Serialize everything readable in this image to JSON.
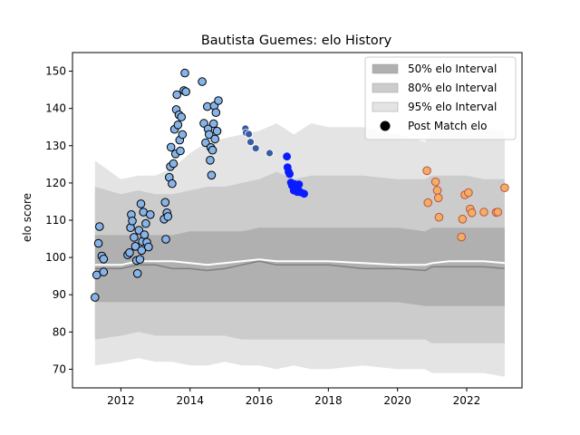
{
  "chart_data": {
    "type": "scatter",
    "title": "Bautista Guemes: elo History",
    "xlabel": "",
    "ylabel": "elo score",
    "xlim": [
      2010.6,
      2023.6
    ],
    "ylim": [
      65,
      155
    ],
    "xticks": [
      2012,
      2014,
      2016,
      2018,
      2020,
      2022
    ],
    "yticks": [
      70,
      80,
      90,
      100,
      110,
      120,
      130,
      140,
      150
    ],
    "grid": false,
    "legend_position": "top-right",
    "legend": [
      {
        "label": "50% elo Interval",
        "kind": "band",
        "color": "#b0b0b0"
      },
      {
        "label": "80% elo Interval",
        "kind": "band",
        "color": "#cccccc"
      },
      {
        "label": "95% elo Interval",
        "kind": "band",
        "color": "#e4e4e4"
      },
      {
        "label": "Post Match elo",
        "kind": "marker",
        "color": "#000000"
      }
    ],
    "colors": {
      "band95": "#e4e4e4",
      "band80": "#cccccc",
      "band50": "#b0b0b0",
      "median_line": "#808080",
      "mean_line": "#ffffff",
      "series1": "#87b4e8",
      "series2": "#3a5ba0",
      "series3": "#0a1cff",
      "series4": "#f0b060",
      "series4_edge": "#c0504d"
    },
    "intervals": {
      "x": [
        2011.25,
        2012.0,
        2012.5,
        2013.0,
        2013.5,
        2014.0,
        2014.5,
        2015.0,
        2015.5,
        2016.0,
        2016.5,
        2017.0,
        2017.5,
        2018.0,
        2019.0,
        2020.0,
        2020.8,
        2021.0,
        2021.5,
        2022.0,
        2022.5,
        2023.1
      ],
      "upper95": [
        126,
        121,
        122,
        122,
        124,
        128,
        131,
        132,
        133,
        134,
        136,
        133,
        136,
        135,
        135,
        133,
        131,
        134,
        136,
        135,
        135,
        134
      ],
      "lower95": [
        71,
        72,
        73,
        72,
        72,
        71,
        71,
        72,
        71,
        71,
        70,
        71,
        70,
        70,
        71,
        70,
        70,
        69,
        69,
        69,
        69,
        68
      ],
      "upper80": [
        119,
        117,
        118,
        117,
        117,
        118,
        119,
        119,
        120,
        121,
        123,
        121,
        122,
        122,
        122,
        121,
        121,
        122,
        122,
        122,
        121,
        121
      ],
      "lower80": [
        78,
        79,
        80,
        79,
        79,
        79,
        79,
        79,
        78,
        78,
        78,
        78,
        78,
        78,
        78,
        78,
        78,
        77,
        77,
        77,
        77,
        77
      ],
      "upper50": [
        106,
        106,
        106,
        106,
        106,
        107,
        107,
        107,
        107,
        108,
        108,
        108,
        108,
        108,
        108,
        108,
        107,
        108,
        108,
        108,
        108,
        108
      ],
      "lower50": [
        88,
        88,
        88,
        88,
        88,
        88,
        88,
        88,
        88,
        88,
        88,
        88,
        88,
        88,
        88,
        88,
        87,
        87,
        87,
        87,
        87,
        87
      ],
      "median": [
        97,
        97,
        98,
        98,
        97,
        97,
        96.5,
        97,
        98,
        99,
        98,
        98,
        98,
        98,
        97,
        97,
        96.5,
        97.5,
        97.5,
        97.5,
        97.5,
        97
      ],
      "mean": [
        98,
        98,
        99,
        99,
        99,
        98.5,
        98,
        98.5,
        99,
        99.5,
        99,
        99,
        99,
        99,
        98.5,
        98,
        98,
        98.5,
        99,
        99,
        99,
        98.5
      ]
    },
    "series": [
      {
        "marker": "circle-edged",
        "color": "#87b4e8",
        "edge": "#000000",
        "points": [
          [
            2011.25,
            89.3
          ],
          [
            2011.3,
            95.3
          ],
          [
            2011.35,
            103.8
          ],
          [
            2011.38,
            108.3
          ],
          [
            2011.45,
            100.4
          ],
          [
            2011.5,
            99.6
          ],
          [
            2011.5,
            96.1
          ],
          [
            2012.2,
            100.7
          ],
          [
            2012.25,
            101.3
          ],
          [
            2012.28,
            108.0
          ],
          [
            2012.3,
            111.5
          ],
          [
            2012.33,
            109.8
          ],
          [
            2012.38,
            105.4
          ],
          [
            2012.42,
            103.0
          ],
          [
            2012.45,
            99.2
          ],
          [
            2012.48,
            95.7
          ],
          [
            2012.52,
            107.3
          ],
          [
            2012.55,
            99.5
          ],
          [
            2012.58,
            114.4
          ],
          [
            2012.6,
            101.9
          ],
          [
            2012.62,
            104.3
          ],
          [
            2012.65,
            112.2
          ],
          [
            2012.68,
            106.1
          ],
          [
            2012.72,
            109.1
          ],
          [
            2012.75,
            104.1
          ],
          [
            2012.8,
            102.8
          ],
          [
            2012.85,
            111.5
          ],
          [
            2013.25,
            110.3
          ],
          [
            2013.28,
            114.8
          ],
          [
            2013.3,
            104.9
          ],
          [
            2013.33,
            112.0
          ],
          [
            2013.36,
            111.0
          ],
          [
            2013.4,
            121.5
          ],
          [
            2013.43,
            124.4
          ],
          [
            2013.45,
            129.6
          ],
          [
            2013.48,
            119.8
          ],
          [
            2013.52,
            125.2
          ],
          [
            2013.55,
            134.4
          ],
          [
            2013.58,
            127.8
          ],
          [
            2013.6,
            139.7
          ],
          [
            2013.62,
            143.7
          ],
          [
            2013.65,
            135.6
          ],
          [
            2013.68,
            138.3
          ],
          [
            2013.7,
            131.5
          ],
          [
            2013.72,
            128.6
          ],
          [
            2013.75,
            137.7
          ],
          [
            2013.78,
            133.0
          ],
          [
            2013.82,
            144.8
          ],
          [
            2013.85,
            149.5
          ],
          [
            2013.88,
            144.5
          ],
          [
            2014.35,
            147.2
          ],
          [
            2014.4,
            136.0
          ],
          [
            2014.45,
            130.8
          ],
          [
            2014.5,
            140.5
          ],
          [
            2014.52,
            134.5
          ],
          [
            2014.55,
            133.0
          ],
          [
            2014.58,
            126.1
          ],
          [
            2014.6,
            129.5
          ],
          [
            2014.62,
            122.1
          ],
          [
            2014.65,
            128.8
          ],
          [
            2014.68,
            135.9
          ],
          [
            2014.7,
            140.7
          ],
          [
            2014.72,
            131.8
          ],
          [
            2014.75,
            138.9
          ],
          [
            2014.78,
            133.9
          ],
          [
            2014.82,
            142.1
          ]
        ]
      },
      {
        "marker": "circle",
        "color": "#3a5ba0",
        "edge": "#ffffff",
        "points": [
          [
            2015.6,
            134.6
          ],
          [
            2015.62,
            133.5
          ],
          [
            2015.7,
            133.1
          ],
          [
            2015.75,
            131.0
          ],
          [
            2015.9,
            129.3
          ],
          [
            2016.3,
            128.0
          ]
        ]
      },
      {
        "marker": "circle",
        "color": "#0a1cff",
        "edge": "#0a1cff",
        "points": [
          [
            2016.8,
            127.1
          ],
          [
            2016.82,
            124.2
          ],
          [
            2016.85,
            123.0
          ],
          [
            2016.88,
            122.4
          ],
          [
            2016.92,
            120.1
          ],
          [
            2016.95,
            119.3
          ],
          [
            2017.0,
            118.0
          ],
          [
            2017.02,
            119.7
          ],
          [
            2017.05,
            118.6
          ],
          [
            2017.08,
            119.4
          ],
          [
            2017.1,
            117.6
          ],
          [
            2017.12,
            118.2
          ],
          [
            2017.15,
            119.6
          ],
          [
            2017.2,
            117.5
          ],
          [
            2017.3,
            117.1
          ]
        ]
      },
      {
        "marker": "circle-edged",
        "color": "#f0b060",
        "edge": "#c0504d",
        "points": [
          [
            2020.85,
            123.3
          ],
          [
            2020.88,
            114.7
          ],
          [
            2021.1,
            120.3
          ],
          [
            2021.15,
            118.0
          ],
          [
            2021.18,
            116.0
          ],
          [
            2021.2,
            110.8
          ],
          [
            2021.85,
            105.5
          ],
          [
            2021.88,
            110.3
          ],
          [
            2021.95,
            116.8
          ],
          [
            2022.05,
            117.4
          ],
          [
            2022.1,
            113.0
          ],
          [
            2022.15,
            112.0
          ],
          [
            2022.5,
            112.2
          ],
          [
            2022.85,
            112.1
          ],
          [
            2022.9,
            112.2
          ],
          [
            2023.1,
            118.7
          ]
        ]
      }
    ]
  }
}
